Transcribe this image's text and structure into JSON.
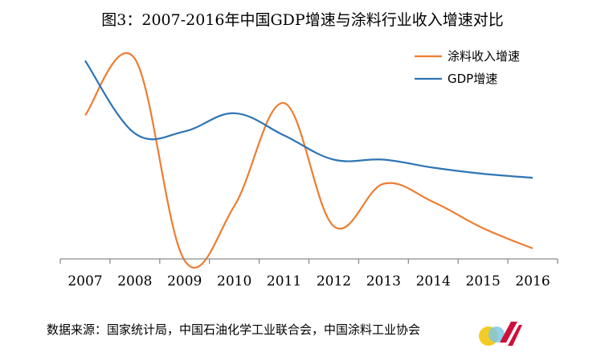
{
  "chart_data": {
    "type": "line",
    "title": "图3：2007-2016年中国GDP增速与涂料行业收入增速对比",
    "xlabel": "",
    "ylabel": "",
    "categories": [
      "2007",
      "2008",
      "2009",
      "2010",
      "2011",
      "2012",
      "2013",
      "2014",
      "2015",
      "2016"
    ],
    "series": [
      {
        "name": "涂料收入增速",
        "color": "#ED7D31",
        "values": [
          0.72,
          1.0,
          0.0,
          0.27,
          0.78,
          0.17,
          0.38,
          0.29,
          0.16,
          0.06
        ]
      },
      {
        "name": "GDP增速",
        "color": "#2E75B6",
        "values": [
          0.99,
          0.63,
          0.64,
          0.73,
          0.62,
          0.5,
          0.5,
          0.46,
          0.43,
          0.41
        ]
      }
    ],
    "legend_position": "top-right",
    "grid": false,
    "y_axis_visible": false
  },
  "source_note": "数据来源：国家统计局，中国石油化学工业联合会，中国涂料工业协会",
  "watermark_icon": "ca-logo-icon"
}
